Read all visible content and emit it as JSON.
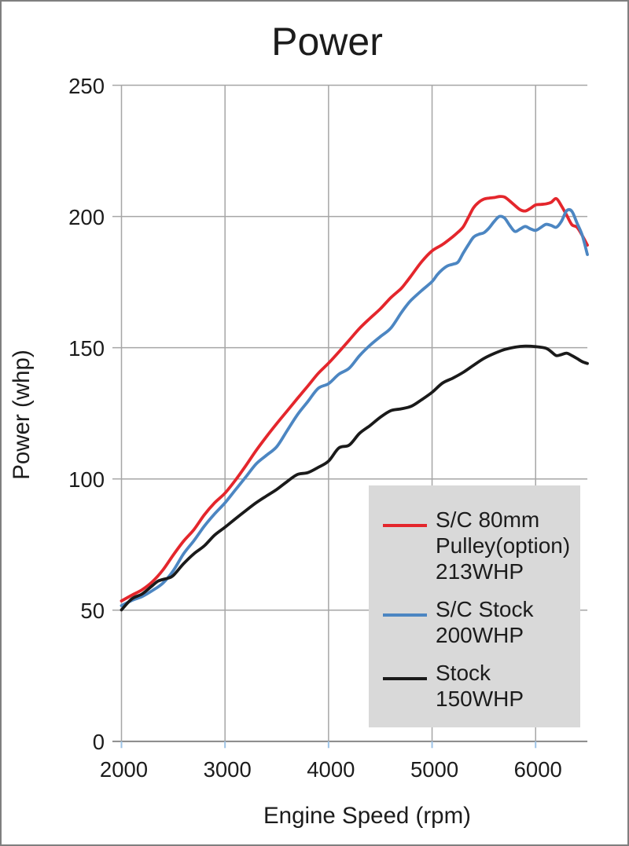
{
  "figure": {
    "title": "Power"
  },
  "chart_data": {
    "type": "line",
    "title": "Power",
    "xlabel": "Engine Speed (rpm)",
    "ylabel": "Power (whp)",
    "xlim": [
      2000,
      6500
    ],
    "ylim": [
      0,
      250
    ],
    "x_ticks": [
      2000,
      3000,
      4000,
      5000,
      6000
    ],
    "y_ticks": [
      0,
      50,
      100,
      150,
      200,
      250
    ],
    "grid": true,
    "legend_position": "lower right",
    "background_color": "#ffffff",
    "gridline_color": "#a6a6a6",
    "axis_color": "#808080",
    "x_tick_mark_color": "#9dc3e6",
    "legend_fill_color": "#d9d9d9",
    "text_color": "#1c1c1c",
    "series": [
      {
        "name": "S/C 80mm Pulley(option) 213WHP",
        "legend_lines": "S/C 80mm\nPulley(option)\n213WHP",
        "color": "#e4262c",
        "points": [
          [
            2000,
            53.5
          ],
          [
            2100,
            55.7
          ],
          [
            2200,
            57.8
          ],
          [
            2300,
            60.9
          ],
          [
            2400,
            65.3
          ],
          [
            2500,
            71.0
          ],
          [
            2600,
            76.3
          ],
          [
            2700,
            80.7
          ],
          [
            2800,
            86.3
          ],
          [
            2900,
            90.9
          ],
          [
            3000,
            94.6
          ],
          [
            3100,
            99.5
          ],
          [
            3200,
            105.0
          ],
          [
            3300,
            110.8
          ],
          [
            3400,
            116.1
          ],
          [
            3500,
            121.1
          ],
          [
            3600,
            125.9
          ],
          [
            3700,
            130.7
          ],
          [
            3800,
            135.4
          ],
          [
            3900,
            140.2
          ],
          [
            4000,
            144.1
          ],
          [
            4100,
            148.4
          ],
          [
            4200,
            152.9
          ],
          [
            4300,
            157.4
          ],
          [
            4400,
            161.2
          ],
          [
            4500,
            164.8
          ],
          [
            4600,
            169.0
          ],
          [
            4700,
            172.5
          ],
          [
            4750,
            174.9
          ],
          [
            4800,
            177.5
          ],
          [
            4900,
            182.8
          ],
          [
            5000,
            186.9
          ],
          [
            5100,
            189.3
          ],
          [
            5200,
            192.3
          ],
          [
            5250,
            194.0
          ],
          [
            5300,
            196.0
          ],
          [
            5350,
            199.6
          ],
          [
            5400,
            203.3
          ],
          [
            5450,
            205.4
          ],
          [
            5500,
            206.6
          ],
          [
            5550,
            207.0
          ],
          [
            5600,
            207.2
          ],
          [
            5650,
            207.6
          ],
          [
            5700,
            207.4
          ],
          [
            5750,
            205.9
          ],
          [
            5800,
            204.2
          ],
          [
            5850,
            202.6
          ],
          [
            5900,
            202.1
          ],
          [
            5950,
            203.1
          ],
          [
            6000,
            204.4
          ],
          [
            6050,
            204.6
          ],
          [
            6100,
            204.8
          ],
          [
            6150,
            205.4
          ],
          [
            6200,
            206.8
          ],
          [
            6250,
            204.0
          ],
          [
            6300,
            200.5
          ],
          [
            6350,
            196.9
          ],
          [
            6400,
            195.9
          ],
          [
            6450,
            192.8
          ],
          [
            6500,
            189.1
          ]
        ]
      },
      {
        "name": "S/C Stock 200WHP",
        "legend_lines": "S/C Stock\n200WHP",
        "color": "#4c86c2",
        "points": [
          [
            2000,
            51.7
          ],
          [
            2100,
            53.7
          ],
          [
            2200,
            55.2
          ],
          [
            2300,
            57.5
          ],
          [
            2400,
            60.3
          ],
          [
            2500,
            65.0
          ],
          [
            2600,
            71.5
          ],
          [
            2700,
            76.5
          ],
          [
            2800,
            82.0
          ],
          [
            2900,
            86.7
          ],
          [
            3000,
            90.9
          ],
          [
            3100,
            95.8
          ],
          [
            3200,
            100.7
          ],
          [
            3300,
            105.7
          ],
          [
            3400,
            109.0
          ],
          [
            3500,
            112.3
          ],
          [
            3600,
            118.4
          ],
          [
            3700,
            124.5
          ],
          [
            3800,
            129.5
          ],
          [
            3900,
            134.5
          ],
          [
            4000,
            136.3
          ],
          [
            4100,
            139.9
          ],
          [
            4200,
            142.2
          ],
          [
            4300,
            147.0
          ],
          [
            4400,
            150.9
          ],
          [
            4500,
            154.2
          ],
          [
            4600,
            157.4
          ],
          [
            4700,
            163.2
          ],
          [
            4750,
            165.9
          ],
          [
            4800,
            168.2
          ],
          [
            4900,
            171.8
          ],
          [
            5000,
            175.2
          ],
          [
            5050,
            177.8
          ],
          [
            5100,
            179.8
          ],
          [
            5150,
            181.2
          ],
          [
            5200,
            181.8
          ],
          [
            5250,
            182.6
          ],
          [
            5300,
            186.0
          ],
          [
            5350,
            189.2
          ],
          [
            5400,
            192.1
          ],
          [
            5450,
            193.2
          ],
          [
            5500,
            193.8
          ],
          [
            5550,
            195.6
          ],
          [
            5600,
            198.1
          ],
          [
            5650,
            200.0
          ],
          [
            5700,
            199.4
          ],
          [
            5750,
            196.6
          ],
          [
            5800,
            194.3
          ],
          [
            5850,
            195.2
          ],
          [
            5900,
            196.2
          ],
          [
            5950,
            195.3
          ],
          [
            6000,
            194.7
          ],
          [
            6050,
            195.8
          ],
          [
            6100,
            197.0
          ],
          [
            6150,
            196.6
          ],
          [
            6200,
            195.9
          ],
          [
            6250,
            198.2
          ],
          [
            6300,
            202.2
          ],
          [
            6350,
            202.0
          ],
          [
            6400,
            197.5
          ],
          [
            6450,
            192.9
          ],
          [
            6500,
            185.5
          ]
        ]
      },
      {
        "name": "Stock 150WHP",
        "legend_lines": "Stock\n150WHP",
        "color": "#1a1a1a",
        "points": [
          [
            2000,
            50.1
          ],
          [
            2100,
            54.3
          ],
          [
            2200,
            56.2
          ],
          [
            2300,
            59.4
          ],
          [
            2350,
            61.0
          ],
          [
            2400,
            61.7
          ],
          [
            2450,
            62.2
          ],
          [
            2500,
            63.2
          ],
          [
            2600,
            67.7
          ],
          [
            2700,
            71.5
          ],
          [
            2800,
            74.5
          ],
          [
            2900,
            78.6
          ],
          [
            3000,
            81.6
          ],
          [
            3100,
            84.8
          ],
          [
            3200,
            87.9
          ],
          [
            3300,
            90.9
          ],
          [
            3400,
            93.5
          ],
          [
            3500,
            96.0
          ],
          [
            3600,
            99.0
          ],
          [
            3700,
            101.7
          ],
          [
            3800,
            102.4
          ],
          [
            3900,
            104.4
          ],
          [
            4000,
            106.8
          ],
          [
            4100,
            111.8
          ],
          [
            4200,
            112.9
          ],
          [
            4300,
            117.4
          ],
          [
            4400,
            120.3
          ],
          [
            4500,
            123.5
          ],
          [
            4600,
            126.0
          ],
          [
            4700,
            126.7
          ],
          [
            4800,
            127.7
          ],
          [
            4900,
            130.2
          ],
          [
            5000,
            133.0
          ],
          [
            5100,
            136.5
          ],
          [
            5200,
            138.4
          ],
          [
            5300,
            140.6
          ],
          [
            5400,
            143.3
          ],
          [
            5500,
            145.9
          ],
          [
            5600,
            147.8
          ],
          [
            5700,
            149.3
          ],
          [
            5800,
            150.2
          ],
          [
            5900,
            150.6
          ],
          [
            6000,
            150.4
          ],
          [
            6100,
            149.8
          ],
          [
            6150,
            148.5
          ],
          [
            6200,
            147.0
          ],
          [
            6250,
            147.4
          ],
          [
            6300,
            147.9
          ],
          [
            6350,
            147.0
          ],
          [
            6400,
            145.9
          ],
          [
            6450,
            144.7
          ],
          [
            6500,
            144.0
          ]
        ]
      }
    ]
  }
}
